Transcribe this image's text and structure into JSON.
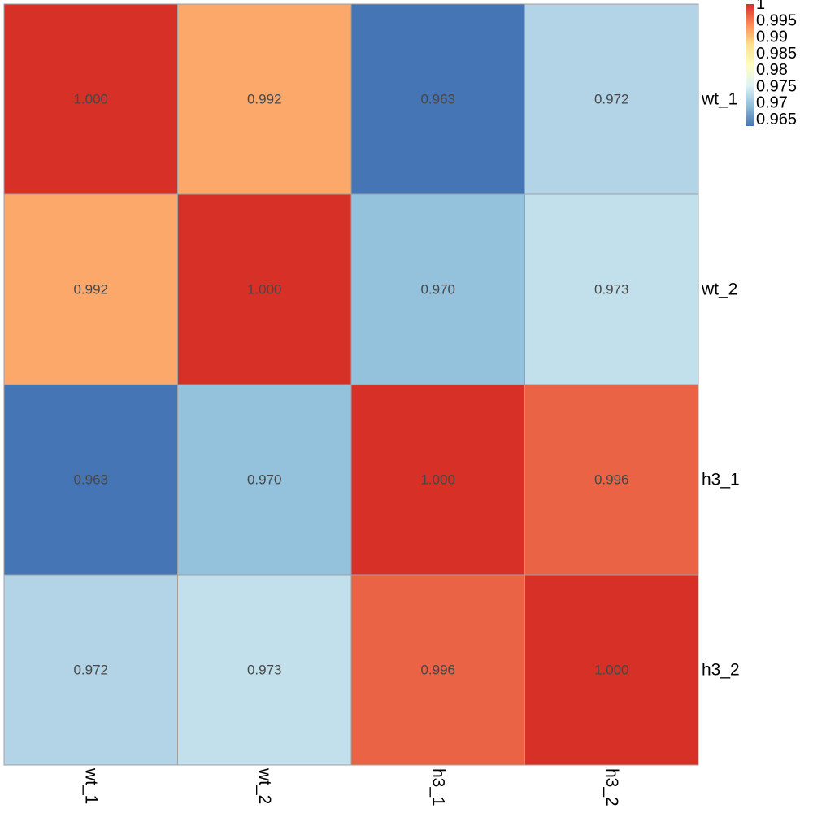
{
  "chart_data": {
    "type": "heatmap",
    "title": "",
    "rows": [
      "wt_1",
      "wt_2",
      "h3_1",
      "h3_2"
    ],
    "columns": [
      "wt_1",
      "wt_2",
      "h3_1",
      "h3_2"
    ],
    "values": [
      [
        1.0,
        0.992,
        0.963,
        0.972
      ],
      [
        0.992,
        1.0,
        0.97,
        0.973
      ],
      [
        0.963,
        0.97,
        1.0,
        0.996
      ],
      [
        0.972,
        0.973,
        0.996,
        1.0
      ]
    ],
    "cell_labels": [
      [
        "1.000",
        "0.992",
        "0.963",
        "0.972"
      ],
      [
        "0.992",
        "1.000",
        "0.970",
        "0.973"
      ],
      [
        "0.963",
        "0.970",
        "1.000",
        "0.996"
      ],
      [
        "0.972",
        "0.973",
        "0.996",
        "1.000"
      ]
    ],
    "row_label_position": "right",
    "column_label_position": "bottom-rotated",
    "legend": {
      "position": "top-right",
      "min": 0.963,
      "max": 1.0,
      "ticks": [
        {
          "value": 1.0,
          "label": "1"
        },
        {
          "value": 0.995,
          "label": "0.995"
        },
        {
          "value": 0.99,
          "label": "0.99"
        },
        {
          "value": 0.985,
          "label": "0.985"
        },
        {
          "value": 0.98,
          "label": "0.98"
        },
        {
          "value": 0.975,
          "label": "0.975"
        },
        {
          "value": 0.97,
          "label": "0.97"
        },
        {
          "value": 0.965,
          "label": "0.965"
        }
      ]
    },
    "color_scale": [
      "#4575B4",
      "#91BFDB",
      "#E0F3F8",
      "#FFFFBF",
      "#FEE090",
      "#FC8D59",
      "#D73027"
    ],
    "cell_colors": [
      [
        "#D73027",
        "#FCA86B",
        "#4575B4",
        "#B3D4E7"
      ],
      [
        "#FCA86B",
        "#D73027",
        "#94C1DC",
        "#C2E0EB"
      ],
      [
        "#4575B4",
        "#94C1DC",
        "#D73027",
        "#E96344"
      ],
      [
        "#B3D4E7",
        "#C2E0EB",
        "#E96344",
        "#D73027"
      ]
    ],
    "border_color": "#A0A0A0"
  }
}
